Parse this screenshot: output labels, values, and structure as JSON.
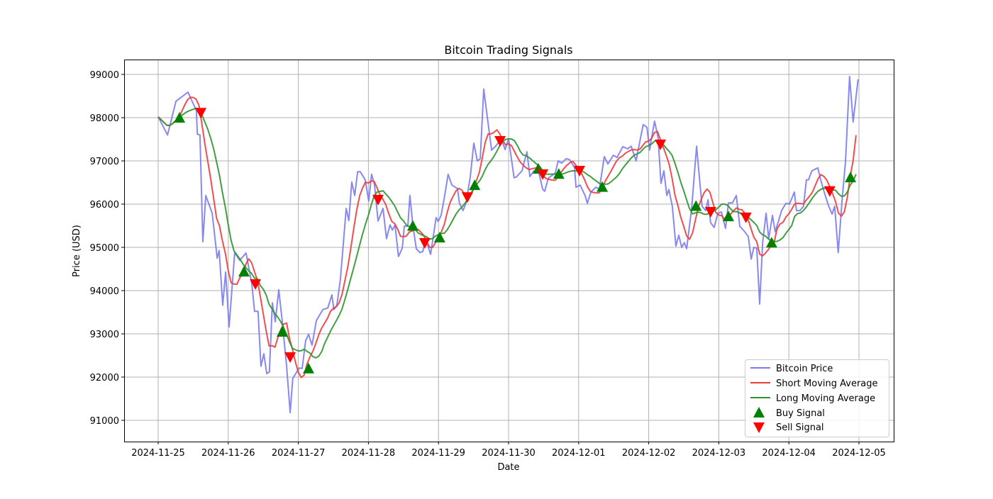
{
  "chart_data": {
    "type": "line",
    "title": "Bitcoin Trading Signals",
    "xlabel": "Date",
    "ylabel": "Price (USD)",
    "x_start": "2024-11-25",
    "x_unit": "hours since 2024-11-25 00:00",
    "xlim_days": [
      -0.5,
      10.5
    ],
    "ylim": [
      90500,
      99350
    ],
    "grid": true,
    "legend_position": "lower-right",
    "x_ticks": [
      "2024-11-25",
      "2024-11-26",
      "2024-11-27",
      "2024-11-28",
      "2024-11-29",
      "2024-11-30",
      "2024-12-01",
      "2024-12-02",
      "2024-12-03",
      "2024-12-04",
      "2024-12-05"
    ],
    "y_ticks": [
      "91000",
      "92000",
      "93000",
      "94000",
      "95000",
      "96000",
      "97000",
      "98000",
      "99000"
    ],
    "y_tick_values": [
      91000,
      92000,
      93000,
      94000,
      95000,
      96000,
      97000,
      98000,
      99000
    ],
    "colors": {
      "price": "#7b7bf0",
      "short": "#ee3b3b",
      "long": "#2e942e",
      "buy": "#008000",
      "sell": "#ff0000"
    },
    "legend": [
      "Bitcoin Price",
      "Short Moving Average",
      "Long Moving Average",
      "Buy Signal",
      "Sell Signal"
    ],
    "price": [
      [
        0,
        98020
      ],
      [
        3.2,
        97600
      ],
      [
        6.1,
        98380
      ],
      [
        10.2,
        98590
      ],
      [
        13.1,
        98160
      ],
      [
        13.4,
        97620
      ],
      [
        14.3,
        97600
      ],
      [
        15.3,
        95130
      ],
      [
        16.3,
        96200
      ],
      [
        18.5,
        95790
      ],
      [
        20.2,
        94750
      ],
      [
        20.9,
        94930
      ],
      [
        22.1,
        93660
      ],
      [
        23.1,
        94430
      ],
      [
        24.3,
        93160
      ],
      [
        26.2,
        94880
      ],
      [
        27.9,
        94700
      ],
      [
        30.1,
        94870
      ],
      [
        32.1,
        94150
      ],
      [
        33.0,
        93520
      ],
      [
        34.2,
        93520
      ],
      [
        35.2,
        92250
      ],
      [
        36.2,
        92540
      ],
      [
        37.2,
        92080
      ],
      [
        38.1,
        92120
      ],
      [
        39.1,
        93720
      ],
      [
        40.1,
        93280
      ],
      [
        41.3,
        94020
      ],
      [
        42.5,
        93280
      ],
      [
        44.0,
        92250
      ],
      [
        45.2,
        91180
      ],
      [
        46.1,
        91970
      ],
      [
        48.3,
        92210
      ],
      [
        49.3,
        92200
      ],
      [
        50.5,
        92840
      ],
      [
        51.5,
        92990
      ],
      [
        52.7,
        92740
      ],
      [
        54.2,
        93310
      ],
      [
        56.4,
        93560
      ],
      [
        58.1,
        93600
      ],
      [
        59.5,
        93900
      ],
      [
        60.2,
        93560
      ],
      [
        61.2,
        93660
      ],
      [
        62.4,
        94260
      ],
      [
        63.2,
        94920
      ],
      [
        64.4,
        95900
      ],
      [
        65.3,
        95620
      ],
      [
        66.3,
        96510
      ],
      [
        67.3,
        96200
      ],
      [
        68.3,
        96750
      ],
      [
        69.2,
        96750
      ],
      [
        70.9,
        96560
      ],
      [
        72.1,
        96070
      ],
      [
        73.1,
        96690
      ],
      [
        74.1,
        96450
      ],
      [
        75.3,
        95610
      ],
      [
        77.0,
        95900
      ],
      [
        78.2,
        95200
      ],
      [
        79.4,
        95520
      ],
      [
        80.2,
        95400
      ],
      [
        81.1,
        95520
      ],
      [
        82.3,
        94790
      ],
      [
        83.6,
        94980
      ],
      [
        84.3,
        95490
      ],
      [
        85.5,
        95490
      ],
      [
        86.2,
        96200
      ],
      [
        87.2,
        95520
      ],
      [
        88.4,
        94970
      ],
      [
        89.6,
        94880
      ],
      [
        90.6,
        94900
      ],
      [
        91.6,
        95200
      ],
      [
        93.3,
        94840
      ],
      [
        95.2,
        95690
      ],
      [
        95.9,
        95600
      ],
      [
        96.9,
        95740
      ],
      [
        98.1,
        96180
      ],
      [
        99.3,
        96690
      ],
      [
        100.6,
        96440
      ],
      [
        102.5,
        96360
      ],
      [
        103.2,
        96020
      ],
      [
        104.4,
        95850
      ],
      [
        105.4,
        96020
      ],
      [
        106.9,
        96640
      ],
      [
        108.1,
        97410
      ],
      [
        109.3,
        97000
      ],
      [
        110.3,
        97050
      ],
      [
        111.5,
        98660
      ],
      [
        112.7,
        98030
      ],
      [
        114.2,
        97250
      ],
      [
        115.4,
        97330
      ],
      [
        117.6,
        97510
      ],
      [
        118.8,
        97260
      ],
      [
        120.0,
        97510
      ],
      [
        121.9,
        96610
      ],
      [
        122.7,
        96630
      ],
      [
        124.6,
        96770
      ],
      [
        126.3,
        97210
      ],
      [
        127.3,
        96640
      ],
      [
        128.7,
        96770
      ],
      [
        130.4,
        96720
      ],
      [
        131.7,
        96340
      ],
      [
        132.4,
        96300
      ],
      [
        133.6,
        96600
      ],
      [
        136.0,
        96720
      ],
      [
        137.0,
        97000
      ],
      [
        138.2,
        96950
      ],
      [
        139.7,
        97050
      ],
      [
        140.9,
        97030
      ],
      [
        142.6,
        96850
      ],
      [
        143.1,
        96390
      ],
      [
        144.5,
        96440
      ],
      [
        146.2,
        96200
      ],
      [
        147.0,
        96020
      ],
      [
        148.2,
        96280
      ],
      [
        149.9,
        96390
      ],
      [
        151.1,
        96350
      ],
      [
        152.8,
        97100
      ],
      [
        154.0,
        96930
      ],
      [
        155.9,
        97130
      ],
      [
        157.2,
        97080
      ],
      [
        159.1,
        97330
      ],
      [
        160.8,
        97280
      ],
      [
        162.0,
        97340
      ],
      [
        163.7,
        97000
      ],
      [
        164.4,
        97260
      ],
      [
        166.1,
        97840
      ],
      [
        167.4,
        97780
      ],
      [
        168.3,
        97250
      ],
      [
        170.0,
        97920
      ],
      [
        171.2,
        97540
      ],
      [
        172.2,
        96480
      ],
      [
        173.2,
        96770
      ],
      [
        174.2,
        96200
      ],
      [
        174.9,
        96340
      ],
      [
        176.1,
        95950
      ],
      [
        177.3,
        95030
      ],
      [
        178.3,
        95280
      ],
      [
        179.3,
        95000
      ],
      [
        180.2,
        95110
      ],
      [
        181.0,
        94970
      ],
      [
        182.7,
        95900
      ],
      [
        184.4,
        97340
      ],
      [
        185.6,
        96430
      ],
      [
        186.3,
        95950
      ],
      [
        187.5,
        95850
      ],
      [
        188.3,
        96100
      ],
      [
        189.2,
        95570
      ],
      [
        190.4,
        95460
      ],
      [
        191.7,
        95790
      ],
      [
        192.9,
        95820
      ],
      [
        194.3,
        95440
      ],
      [
        195.3,
        96030
      ],
      [
        196.7,
        96030
      ],
      [
        198.0,
        96200
      ],
      [
        199.2,
        95490
      ],
      [
        200.9,
        95360
      ],
      [
        202.1,
        95250
      ],
      [
        203.1,
        94730
      ],
      [
        204.0,
        95000
      ],
      [
        205.0,
        94980
      ],
      [
        206.0,
        93690
      ],
      [
        207.0,
        95100
      ],
      [
        208.2,
        95790
      ],
      [
        209.1,
        95200
      ],
      [
        210.4,
        95740
      ],
      [
        211.3,
        95360
      ],
      [
        212.5,
        95620
      ],
      [
        213.5,
        95850
      ],
      [
        215.0,
        96020
      ],
      [
        216.2,
        96000
      ],
      [
        217.9,
        96280
      ],
      [
        218.6,
        95850
      ],
      [
        219.8,
        95850
      ],
      [
        221.0,
        95950
      ],
      [
        222.0,
        96560
      ],
      [
        222.7,
        96560
      ],
      [
        223.9,
        96770
      ],
      [
        225.9,
        96840
      ],
      [
        226.9,
        96560
      ],
      [
        228.1,
        96280
      ],
      [
        229.5,
        95980
      ],
      [
        230.8,
        95770
      ],
      [
        231.7,
        95950
      ],
      [
        232.9,
        94880
      ],
      [
        234.2,
        96070
      ],
      [
        235.4,
        97000
      ],
      [
        236.8,
        98950
      ],
      [
        238.0,
        97900
      ],
      [
        239.7,
        98890
      ]
    ],
    "buy_signals": [
      [
        7.3,
        98000
      ],
      [
        29.4,
        94440
      ],
      [
        42.5,
        93050
      ],
      [
        51.5,
        92200
      ],
      [
        87.2,
        95500
      ],
      [
        96.4,
        95230
      ],
      [
        108.4,
        96440
      ],
      [
        130.2,
        96820
      ],
      [
        137.2,
        96700
      ],
      [
        152.1,
        96400
      ],
      [
        184.2,
        95960
      ],
      [
        195.3,
        95720
      ],
      [
        210.1,
        95110
      ],
      [
        237.1,
        96620
      ]
    ],
    "sell_signals": [
      [
        14.6,
        98110
      ],
      [
        33.3,
        94150
      ],
      [
        45.2,
        92460
      ],
      [
        75.3,
        96100
      ],
      [
        91.3,
        95100
      ],
      [
        105.9,
        96160
      ],
      [
        117.1,
        97460
      ],
      [
        131.7,
        96690
      ],
      [
        144.3,
        96770
      ],
      [
        172.0,
        97380
      ],
      [
        189.2,
        95820
      ],
      [
        201.3,
        95690
      ],
      [
        230.0,
        96300
      ]
    ]
  }
}
